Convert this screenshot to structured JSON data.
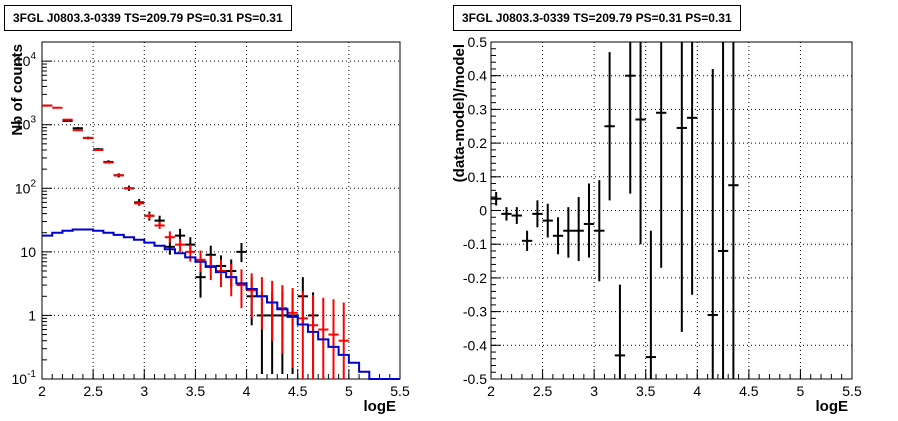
{
  "chart_data": [
    {
      "type": "line",
      "title": "3FGL J0803.3-0339 TS=209.79 PS=0.31 PS=0.31",
      "xlabel": "logE",
      "ylabel": "Nb of counts",
      "xlim": [
        2,
        5.5
      ],
      "ylim": [
        0.1,
        20000
      ],
      "yscale": "log",
      "grid": true,
      "x_ticks": [
        "2",
        "2.5",
        "3",
        "3.5",
        "4",
        "4.5",
        "5",
        "5.5"
      ],
      "y_ticks": [
        {
          "value": 0.1,
          "label": "10",
          "exp": "-1"
        },
        {
          "value": 1,
          "label": "1",
          "exp": ""
        },
        {
          "value": 10,
          "label": "10",
          "exp": ""
        },
        {
          "value": 100,
          "label": "10",
          "exp": "2"
        },
        {
          "value": 1000,
          "label": "10",
          "exp": "3"
        },
        {
          "value": 10000,
          "label": "10",
          "exp": "4"
        }
      ],
      "series": [
        {
          "color": "#000000",
          "style": "errorbar",
          "points": [
            {
              "x": 2.05,
              "y": 2000,
              "lo": 1960,
              "hi": 2050
            },
            {
              "x": 2.25,
              "y": 1150,
              "lo": 1110,
              "hi": 1190
            },
            {
              "x": 2.35,
              "y": 880,
              "lo": 840,
              "hi": 920
            },
            {
              "x": 2.45,
              "y": 620,
              "lo": 590,
              "hi": 650
            },
            {
              "x": 2.55,
              "y": 410,
              "lo": 390,
              "hi": 430
            },
            {
              "x": 2.65,
              "y": 260,
              "lo": 245,
              "hi": 276
            },
            {
              "x": 2.75,
              "y": 160,
              "lo": 148,
              "hi": 172
            },
            {
              "x": 2.85,
              "y": 100,
              "lo": 91,
              "hi": 110
            },
            {
              "x": 2.95,
              "y": 60,
              "lo": 53,
              "hi": 68
            },
            {
              "x": 3.05,
              "y": 37,
              "lo": 31,
              "hi": 43
            },
            {
              "x": 3.15,
              "y": 31,
              "lo": 26,
              "hi": 37
            },
            {
              "x": 3.25,
              "y": 12,
              "lo": 9,
              "hi": 16
            },
            {
              "x": 3.35,
              "y": 18,
              "lo": 14,
              "hi": 23
            },
            {
              "x": 3.45,
              "y": 13,
              "lo": 10,
              "hi": 17
            },
            {
              "x": 3.55,
              "y": 4,
              "lo": 1.9,
              "hi": 6.5
            },
            {
              "x": 3.65,
              "y": 9,
              "lo": 6,
              "hi": 12.5
            },
            {
              "x": 3.75,
              "y": 6,
              "lo": 3.7,
              "hi": 8.8
            },
            {
              "x": 3.85,
              "y": 5,
              "lo": 2.8,
              "hi": 7.6
            },
            {
              "x": 3.95,
              "y": 10,
              "lo": 6.9,
              "hi": 13.8
            },
            {
              "x": 4.05,
              "y": 2,
              "lo": 0.7,
              "hi": 4
            },
            {
              "x": 4.15,
              "y": 1,
              "lo": 0.12,
              "hi": 2.3
            },
            {
              "x": 4.25,
              "y": 1,
              "lo": 0.12,
              "hi": 2.3
            },
            {
              "x": 4.35,
              "y": 1,
              "lo": 0.12,
              "hi": 2.3
            },
            {
              "x": 4.45,
              "y": 1,
              "lo": 0.12,
              "hi": 2.3
            },
            {
              "x": 4.55,
              "y": 2,
              "lo": 0.7,
              "hi": 4
            },
            {
              "x": 4.65,
              "y": 1,
              "lo": 0.12,
              "hi": 2.3
            }
          ]
        },
        {
          "color": "#ff0000",
          "style": "errorbar",
          "points": [
            {
              "x": 2.05,
              "y": 2000,
              "lo": 1990,
              "hi": 2010
            },
            {
              "x": 2.15,
              "y": 1850,
              "lo": 1840,
              "hi": 1860
            },
            {
              "x": 2.25,
              "y": 1200,
              "lo": 1190,
              "hi": 1210
            },
            {
              "x": 2.35,
              "y": 820,
              "lo": 810,
              "hi": 830
            },
            {
              "x": 2.45,
              "y": 620,
              "lo": 612,
              "hi": 628
            },
            {
              "x": 2.55,
              "y": 400,
              "lo": 392,
              "hi": 408
            },
            {
              "x": 2.65,
              "y": 255,
              "lo": 249,
              "hi": 261
            },
            {
              "x": 2.75,
              "y": 160,
              "lo": 155,
              "hi": 165
            },
            {
              "x": 2.85,
              "y": 100,
              "lo": 96,
              "hi": 104
            },
            {
              "x": 2.95,
              "y": 58,
              "lo": 54,
              "hi": 62
            },
            {
              "x": 3.05,
              "y": 37,
              "lo": 33,
              "hi": 41
            },
            {
              "x": 3.15,
              "y": 26,
              "lo": 23,
              "hi": 30
            },
            {
              "x": 3.25,
              "y": 17,
              "lo": 14,
              "hi": 21
            },
            {
              "x": 3.35,
              "y": 13,
              "lo": 10,
              "hi": 16
            },
            {
              "x": 3.45,
              "y": 10,
              "lo": 7,
              "hi": 13
            },
            {
              "x": 3.55,
              "y": 7.5,
              "lo": 4.8,
              "hi": 10.5
            },
            {
              "x": 3.65,
              "y": 6,
              "lo": 3.6,
              "hi": 8.8
            },
            {
              "x": 3.75,
              "y": 5,
              "lo": 2.8,
              "hi": 7.6
            },
            {
              "x": 3.85,
              "y": 4,
              "lo": 2,
              "hi": 6.5
            },
            {
              "x": 3.95,
              "y": 3,
              "lo": 1.3,
              "hi": 5.3
            },
            {
              "x": 4.05,
              "y": 2.5,
              "lo": 0.9,
              "hi": 4.6
            },
            {
              "x": 4.15,
              "y": 2,
              "lo": 0.6,
              "hi": 4
            },
            {
              "x": 4.25,
              "y": 1.6,
              "lo": 0.4,
              "hi": 3.5
            },
            {
              "x": 4.35,
              "y": 1.3,
              "lo": 0.25,
              "hi": 3
            },
            {
              "x": 4.45,
              "y": 1.1,
              "lo": 0.15,
              "hi": 2.7
            },
            {
              "x": 4.55,
              "y": 0.9,
              "lo": 0.1,
              "hi": 2.4
            },
            {
              "x": 4.65,
              "y": 0.7,
              "lo": 0.1,
              "hi": 2.1
            },
            {
              "x": 4.75,
              "y": 0.6,
              "lo": 0.1,
              "hi": 1.9
            },
            {
              "x": 4.85,
              "y": 0.5,
              "lo": 0.1,
              "hi": 1.8
            },
            {
              "x": 4.95,
              "y": 0.4,
              "lo": 0.1,
              "hi": 1.6
            }
          ]
        },
        {
          "color": "#0000cc",
          "style": "step",
          "bin_width": 0.1,
          "points": [
            {
              "x": 2.05,
              "y": 18
            },
            {
              "x": 2.15,
              "y": 20
            },
            {
              "x": 2.25,
              "y": 21.5
            },
            {
              "x": 2.35,
              "y": 22.5
            },
            {
              "x": 2.45,
              "y": 22.5
            },
            {
              "x": 2.55,
              "y": 21.5
            },
            {
              "x": 2.65,
              "y": 20
            },
            {
              "x": 2.75,
              "y": 18.5
            },
            {
              "x": 2.85,
              "y": 17
            },
            {
              "x": 2.95,
              "y": 15.5
            },
            {
              "x": 3.05,
              "y": 14
            },
            {
              "x": 3.15,
              "y": 12.5
            },
            {
              "x": 3.25,
              "y": 11
            },
            {
              "x": 3.35,
              "y": 9.5
            },
            {
              "x": 3.45,
              "y": 8.2
            },
            {
              "x": 3.55,
              "y": 7
            },
            {
              "x": 3.65,
              "y": 5.8
            },
            {
              "x": 3.75,
              "y": 4.8
            },
            {
              "x": 3.85,
              "y": 4
            },
            {
              "x": 3.95,
              "y": 3.2
            },
            {
              "x": 4.05,
              "y": 2.6
            },
            {
              "x": 4.15,
              "y": 2
            },
            {
              "x": 4.25,
              "y": 1.6
            },
            {
              "x": 4.35,
              "y": 1.25
            },
            {
              "x": 4.45,
              "y": 0.95
            },
            {
              "x": 4.55,
              "y": 0.72
            },
            {
              "x": 4.65,
              "y": 0.55
            },
            {
              "x": 4.75,
              "y": 0.42
            },
            {
              "x": 4.85,
              "y": 0.32
            },
            {
              "x": 4.95,
              "y": 0.24
            },
            {
              "x": 5.05,
              "y": 0.18
            },
            {
              "x": 5.15,
              "y": 0.13
            },
            {
              "x": 5.25,
              "y": 0.1
            },
            {
              "x": 5.35,
              "y": 0.1
            },
            {
              "x": 5.45,
              "y": 0.1
            }
          ]
        }
      ]
    },
    {
      "type": "scatter",
      "title": "3FGL J0803.3-0339 TS=209.79 PS=0.31 PS=0.31",
      "xlabel": "logE",
      "ylabel": "(data-model)/model",
      "xlim": [
        2,
        5.5
      ],
      "ylim": [
        -0.5,
        0.5
      ],
      "grid": true,
      "x_ticks": [
        "2",
        "2.5",
        "3",
        "3.5",
        "4",
        "4.5",
        "5",
        "5.5"
      ],
      "y_ticks": [
        "-0.5",
        "-0.4",
        "-0.3",
        "-0.2",
        "-0.1",
        "0",
        "0.1",
        "0.2",
        "0.3",
        "0.4",
        "0.5"
      ],
      "series": [
        {
          "color": "#000000",
          "style": "errorbar",
          "points": [
            {
              "x": 2.05,
              "y": 0.035,
              "lo": 0.015,
              "hi": 0.055
            },
            {
              "x": 2.15,
              "y": -0.01,
              "lo": -0.03,
              "hi": 0.01
            },
            {
              "x": 2.25,
              "y": -0.015,
              "lo": -0.04,
              "hi": 0.01
            },
            {
              "x": 2.35,
              "y": -0.09,
              "lo": -0.12,
              "hi": -0.06
            },
            {
              "x": 2.45,
              "y": -0.01,
              "lo": -0.05,
              "hi": 0.03
            },
            {
              "x": 2.55,
              "y": -0.03,
              "lo": -0.08,
              "hi": 0.02
            },
            {
              "x": 2.65,
              "y": -0.075,
              "lo": -0.13,
              "hi": -0.02
            },
            {
              "x": 2.75,
              "y": -0.06,
              "lo": -0.14,
              "hi": 0.01
            },
            {
              "x": 2.85,
              "y": -0.06,
              "lo": -0.15,
              "hi": 0.04
            },
            {
              "x": 2.95,
              "y": -0.04,
              "lo": -0.14,
              "hi": 0.08
            },
            {
              "x": 3.05,
              "y": -0.06,
              "lo": -0.21,
              "hi": 0.09
            },
            {
              "x": 3.15,
              "y": 0.25,
              "lo": 0.03,
              "hi": 0.47
            },
            {
              "x": 3.25,
              "y": -0.43,
              "lo": -0.5,
              "hi": -0.22
            },
            {
              "x": 3.35,
              "y": 0.4,
              "lo": 0.05,
              "hi": 0.5
            },
            {
              "x": 3.45,
              "y": 0.27,
              "lo": -0.1,
              "hi": 0.5
            },
            {
              "x": 3.55,
              "y": -0.435,
              "lo": -0.5,
              "hi": -0.06
            },
            {
              "x": 3.65,
              "y": 0.29,
              "lo": -0.17,
              "hi": 0.5
            },
            {
              "x": 3.85,
              "y": 0.245,
              "lo": -0.36,
              "hi": 0.5
            },
            {
              "x": 3.95,
              "y": 0.275,
              "lo": -0.25,
              "hi": 0.5
            },
            {
              "x": 4.15,
              "y": -0.31,
              "lo": -0.5,
              "hi": 0.42
            },
            {
              "x": 4.25,
              "y": -0.12,
              "lo": -0.5,
              "hi": 0.5
            },
            {
              "x": 4.35,
              "y": 0.075,
              "lo": -0.5,
              "hi": 0.5
            }
          ]
        }
      ]
    }
  ]
}
